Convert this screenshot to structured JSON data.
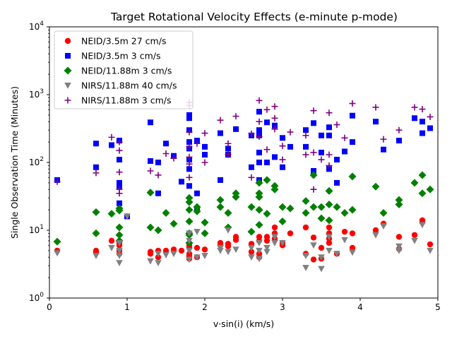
{
  "chart_data": {
    "type": "scatter",
    "title": "Target Rotational Velocity Effects (e-minute p-mode)",
    "xlabel": "v·sin(i) (km/s)",
    "ylabel": "Single Observation Time (Minutes)",
    "xlim": [
      0,
      5
    ],
    "ylim": [
      1,
      10000
    ],
    "yscale": "log",
    "x_ticks": [
      0,
      1,
      2,
      3,
      4,
      5
    ],
    "x_tick_labels": [
      "0",
      "1",
      "2",
      "3",
      "4",
      "5"
    ],
    "y_ticks": [
      1,
      10,
      100,
      1000,
      10000
    ],
    "y_tick_labels": [
      "10",
      "10",
      "10",
      "10",
      "10"
    ],
    "y_tick_exponents": [
      "0",
      "1",
      "2",
      "3",
      "4"
    ],
    "grid": false,
    "legend_position": "top-left",
    "series": [
      {
        "name": "NEID/3.5m 27 cm/s",
        "color": "#ff0000",
        "marker": "circle",
        "x": [
          0.1,
          0.6,
          0.6,
          0.8,
          0.9,
          0.9,
          0.9,
          0.9,
          1.0,
          1.3,
          1.3,
          1.4,
          1.4,
          1.5,
          1.6,
          1.7,
          1.8,
          1.8,
          1.8,
          1.8,
          1.8,
          1.9,
          1.9,
          2.0,
          2.2,
          2.2,
          2.3,
          2.3,
          2.4,
          2.4,
          2.6,
          2.6,
          2.7,
          2.7,
          2.7,
          2.7,
          2.8,
          2.8,
          2.9,
          2.9,
          2.9,
          3.0,
          3.0,
          3.1,
          3.3,
          3.3,
          3.4,
          3.4,
          3.5,
          3.5,
          3.6,
          3.6,
          3.6,
          3.6,
          3.7,
          3.8,
          3.9,
          3.9,
          4.2,
          4.3,
          4.5,
          4.5,
          4.7,
          4.8,
          4.8,
          4.9
        ],
        "y": [
          5,
          5,
          4.8,
          7,
          6.5,
          6,
          5,
          4.5,
          16,
          4.8,
          4.5,
          5,
          4,
          5,
          5.2,
          5,
          6,
          5.5,
          4.5,
          4.2,
          3.8,
          5.5,
          4,
          5.2,
          6.5,
          6,
          6.3,
          5.8,
          8,
          7.2,
          6.3,
          4.8,
          8,
          7,
          4.5,
          4,
          8,
          7,
          11,
          9,
          7.5,
          6.5,
          6,
          9,
          11,
          4.5,
          7.8,
          3.7,
          5.5,
          3.8,
          11,
          9,
          7.5,
          6.5,
          4.5,
          9.5,
          9,
          5.5,
          10,
          12.5,
          8,
          5.3,
          8.5,
          14,
          13,
          6.2
        ]
      },
      {
        "name": "NEID/3.5m 3 cm/s",
        "color": "#0000ff",
        "marker": "square",
        "x": [
          0.1,
          0.6,
          0.6,
          0.8,
          0.9,
          0.9,
          0.9,
          0.9,
          0.9,
          1.0,
          1.3,
          1.3,
          1.4,
          1.4,
          1.5,
          1.6,
          1.7,
          1.8,
          1.8,
          1.8,
          1.8,
          1.8,
          1.8,
          1.8,
          1.8,
          1.9,
          1.9,
          1.9,
          2.0,
          2.0,
          2.2,
          2.2,
          2.3,
          2.3,
          2.4,
          2.6,
          2.6,
          2.7,
          2.7,
          2.7,
          2.7,
          2.7,
          2.7,
          2.8,
          2.8,
          2.9,
          2.9,
          3.0,
          3.0,
          3.1,
          3.3,
          3.3,
          3.4,
          3.4,
          3.5,
          3.5,
          3.6,
          3.6,
          3.6,
          3.7,
          3.7,
          3.8,
          3.9,
          3.9,
          4.2,
          4.3,
          4.5,
          4.7,
          4.8,
          4.8,
          4.9
        ],
        "y": [
          55,
          190,
          85,
          180,
          210,
          110,
          50,
          45,
          25,
          16,
          390,
          105,
          100,
          35,
          190,
          125,
          52,
          500,
          450,
          300,
          200,
          160,
          110,
          80,
          45,
          210,
          35,
          20,
          170,
          130,
          270,
          55,
          160,
          130,
          310,
          250,
          85,
          560,
          300,
          250,
          140,
          100,
          55,
          390,
          100,
          350,
          120,
          230,
          85,
          170,
          300,
          170,
          380,
          75,
          250,
          140,
          330,
          250,
          80,
          110,
          50,
          145,
          490,
          200,
          400,
          155,
          210,
          450,
          400,
          270,
          320
        ]
      },
      {
        "name": "NEID/11.88m 3 cm/s",
        "color": "#008000",
        "marker": "diamond",
        "x": [
          0.1,
          0.6,
          0.6,
          0.8,
          0.9,
          0.9,
          0.9,
          0.9,
          0.9,
          1.3,
          1.3,
          1.4,
          1.5,
          1.6,
          1.8,
          1.8,
          1.8,
          1.8,
          1.8,
          1.8,
          1.8,
          1.9,
          1.9,
          2.0,
          2.0,
          2.2,
          2.2,
          2.3,
          2.3,
          2.4,
          2.4,
          2.6,
          2.6,
          2.7,
          2.7,
          2.7,
          2.7,
          2.7,
          2.8,
          2.8,
          2.9,
          2.9,
          3.0,
          3.0,
          3.1,
          3.3,
          3.3,
          3.4,
          3.4,
          3.5,
          3.5,
          3.6,
          3.6,
          3.6,
          3.7,
          3.8,
          3.9,
          3.9,
          4.2,
          4.3,
          4.5,
          4.5,
          4.7,
          4.8,
          4.8,
          4.9
        ],
        "y": [
          6.8,
          18.5,
          9,
          17.5,
          19.5,
          11,
          8.5,
          7,
          21,
          36,
          11,
          10,
          18,
          12.5,
          30,
          26,
          20,
          13.5,
          9,
          8.5,
          6.5,
          22,
          19,
          13,
          9,
          28,
          22,
          18,
          11,
          35,
          31,
          22,
          9.5,
          35,
          31,
          20,
          12,
          50,
          55,
          17.5,
          45,
          40,
          22,
          13.5,
          21,
          27,
          18,
          65,
          22,
          22,
          15,
          38,
          24,
          14,
          22,
          18,
          62,
          20,
          44,
          18,
          28,
          24,
          50,
          65,
          35,
          40
        ]
      },
      {
        "name": "NIRS/11.88m 40 cm/s",
        "color": "#808080",
        "marker": "triangle-down",
        "x": [
          0.1,
          0.6,
          0.8,
          0.9,
          0.9,
          0.9,
          0.9,
          1.0,
          1.3,
          1.4,
          1.4,
          1.5,
          1.6,
          1.8,
          1.8,
          1.8,
          1.8,
          1.9,
          1.9,
          2.0,
          2.2,
          2.2,
          2.3,
          2.3,
          2.4,
          2.6,
          2.6,
          2.7,
          2.7,
          2.7,
          2.8,
          2.8,
          2.9,
          2.9,
          3.0,
          3.3,
          3.3,
          3.4,
          3.5,
          3.5,
          3.6,
          3.6,
          3.7,
          3.8,
          3.9,
          4.2,
          4.3,
          4.5,
          4.5,
          4.7,
          4.8,
          4.9
        ],
        "y": [
          4.6,
          4.2,
          5.5,
          5,
          4.2,
          3.3,
          6.5,
          16,
          3.5,
          4.5,
          3.3,
          4.3,
          4.5,
          9,
          7,
          5,
          3.7,
          9.5,
          4,
          4.2,
          5.5,
          5,
          4.8,
          10,
          5.2,
          4,
          5.5,
          6.5,
          5,
          3.8,
          5.5,
          4.8,
          8,
          6.5,
          6.5,
          4.2,
          2.8,
          6,
          2.7,
          4,
          8,
          5,
          4.5,
          7.2,
          4.7,
          8.5,
          11.5,
          5,
          5.8,
          7,
          12,
          5
        ]
      },
      {
        "name": "NIRS/11.88m 3 cm/s",
        "color": "#800080",
        "marker": "plus",
        "x": [
          0.1,
          0.6,
          0.8,
          0.9,
          0.9,
          0.9,
          0.9,
          0.9,
          1.3,
          1.4,
          1.5,
          1.6,
          1.8,
          1.8,
          1.8,
          1.8,
          1.8,
          1.8,
          1.8,
          1.9,
          2.0,
          2.0,
          2.2,
          2.3,
          2.3,
          2.4,
          2.6,
          2.6,
          2.7,
          2.7,
          2.7,
          2.8,
          2.8,
          2.9,
          2.9,
          2.9,
          3.0,
          3.0,
          3.1,
          3.3,
          3.3,
          3.4,
          3.4,
          3.4,
          3.5,
          3.6,
          3.6,
          3.6,
          3.7,
          3.8,
          3.9,
          4.2,
          4.3,
          4.5,
          4.7,
          4.8,
          4.9
        ],
        "y": [
          52,
          70,
          235,
          200,
          150,
          72,
          40,
          35,
          75,
          65,
          135,
          115,
          770,
          690,
          280,
          170,
          120,
          95,
          60,
          190,
          270,
          100,
          420,
          190,
          130,
          480,
          265,
          60,
          820,
          400,
          240,
          600,
          155,
          670,
          450,
          310,
          175,
          110,
          280,
          250,
          130,
          580,
          140,
          40,
          110,
          540,
          130,
          90,
          360,
          230,
          740,
          650,
          220,
          300,
          650,
          610,
          470
        ]
      }
    ]
  }
}
